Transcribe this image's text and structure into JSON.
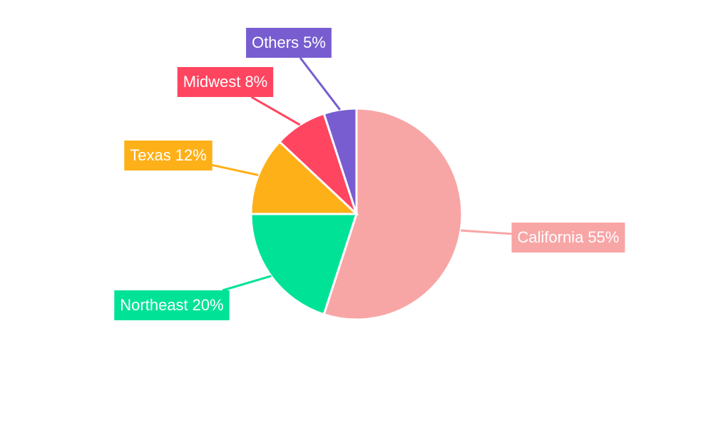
{
  "chart_data": {
    "type": "pie",
    "categories": [
      "California",
      "Northeast",
      "Texas",
      "Midwest",
      "Others"
    ],
    "values": [
      55,
      20,
      12,
      8,
      5
    ],
    "value_labels": [
      "55%",
      "20%",
      "12%",
      "8%",
      "5%"
    ],
    "colors": [
      "#f8a5a6",
      "#00e396",
      "#feb019",
      "#ff4560",
      "#775dd0"
    ]
  }
}
